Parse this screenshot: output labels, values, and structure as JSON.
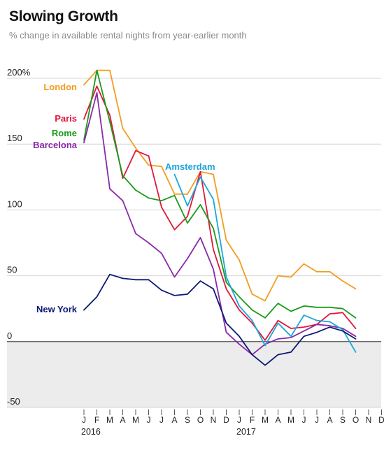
{
  "chart_data": {
    "type": "line",
    "title": "Slowing Growth",
    "subtitle": "% change in available rental nights from year-earlier month",
    "x": [
      "2016-01",
      "2016-02",
      "2016-03",
      "2016-04",
      "2016-05",
      "2016-06",
      "2016-07",
      "2016-08",
      "2016-09",
      "2016-10",
      "2016-11",
      "2016-12",
      "2017-01",
      "2017-02",
      "2017-03",
      "2017-04",
      "2017-05",
      "2017-06",
      "2017-07",
      "2017-08",
      "2017-09",
      "2017-10",
      "2017-11",
      "2017-12"
    ],
    "x_tick_labels": [
      "J",
      "F",
      "M",
      "A",
      "M",
      "J",
      "J",
      "A",
      "S",
      "O",
      "N",
      "D",
      "J",
      "F",
      "M",
      "A",
      "M",
      "J",
      "J",
      "A",
      "S",
      "O",
      "N",
      "D"
    ],
    "year_labels": [
      {
        "label": "2016",
        "at": "2016-01"
      },
      {
        "label": "2017",
        "at": "2017-01"
      }
    ],
    "y_ticks": [
      200,
      150,
      100,
      50,
      0,
      -50
    ],
    "y_tick_labels": [
      "200%",
      "150",
      "100",
      "50",
      "0",
      "-50"
    ],
    "ylim": [
      -50,
      200
    ],
    "grid": true,
    "negative_region_shaded": true,
    "series": [
      {
        "name": "London",
        "color": "#f29d1f",
        "values": [
          195,
          206,
          206,
          162,
          147,
          134,
          133,
          112,
          112,
          129,
          127,
          77,
          62,
          36,
          31,
          50,
          49,
          59,
          53,
          53,
          46,
          40,
          null,
          null
        ]
      },
      {
        "name": "Paris",
        "color": "#e2163c",
        "values": [
          169,
          194,
          172,
          124,
          145,
          141,
          102,
          85,
          95,
          129,
          70,
          40,
          24,
          14,
          1,
          16,
          10,
          11,
          13,
          21,
          22,
          10,
          null,
          null
        ]
      },
      {
        "name": "Rome",
        "color": "#1a9a1a",
        "values": [
          153,
          206,
          167,
          126,
          115,
          109,
          107,
          111,
          90,
          104,
          86,
          45,
          34,
          24,
          18,
          29,
          23,
          27,
          26,
          26,
          25,
          18,
          null,
          null
        ]
      },
      {
        "name": "Barcelona",
        "color": "#8a2aa8",
        "values": [
          151,
          189,
          116,
          107,
          82,
          75,
          67,
          49,
          63,
          79,
          55,
          7,
          -2,
          -10,
          -2,
          2,
          3,
          8,
          13,
          12,
          10,
          4,
          null,
          null
        ]
      },
      {
        "name": "Amsterdam",
        "color": "#1ba6d9",
        "values": [
          null,
          null,
          null,
          null,
          null,
          null,
          null,
          127,
          103,
          125,
          108,
          49,
          27,
          16,
          -3,
          14,
          4,
          20,
          16,
          15,
          9,
          -8,
          null,
          null
        ]
      },
      {
        "name": "New York",
        "color": "#0c1a75",
        "values": [
          24,
          34,
          51,
          48,
          47,
          47,
          39,
          35,
          36,
          46,
          40,
          14,
          4,
          -10,
          -18,
          -10,
          -8,
          4,
          7,
          11,
          8,
          2,
          null,
          null
        ]
      }
    ]
  }
}
